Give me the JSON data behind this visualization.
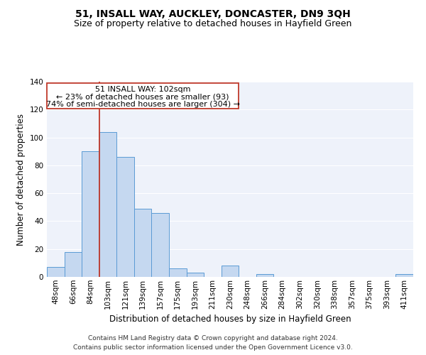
{
  "title": "51, INSALL WAY, AUCKLEY, DONCASTER, DN9 3QH",
  "subtitle": "Size of property relative to detached houses in Hayfield Green",
  "xlabel": "Distribution of detached houses by size in Hayfield Green",
  "ylabel": "Number of detached properties",
  "footnote1": "Contains HM Land Registry data © Crown copyright and database right 2024.",
  "footnote2": "Contains public sector information licensed under the Open Government Licence v3.0.",
  "annotation_line1": "51 INSALL WAY: 102sqm",
  "annotation_line2": "← 23% of detached houses are smaller (93)",
  "annotation_line3": "74% of semi-detached houses are larger (304) →",
  "bar_labels": [
    "48sqm",
    "66sqm",
    "84sqm",
    "103sqm",
    "121sqm",
    "139sqm",
    "157sqm",
    "175sqm",
    "193sqm",
    "211sqm",
    "230sqm",
    "248sqm",
    "266sqm",
    "284sqm",
    "302sqm",
    "320sqm",
    "338sqm",
    "357sqm",
    "375sqm",
    "393sqm",
    "411sqm"
  ],
  "bar_values": [
    7,
    18,
    90,
    104,
    86,
    49,
    46,
    6,
    3,
    0,
    8,
    0,
    2,
    0,
    0,
    0,
    0,
    0,
    0,
    0,
    2
  ],
  "bar_color": "#c5d8f0",
  "bar_edge_color": "#5b9bd5",
  "vline_color": "#c0392b",
  "box_edge_color": "#c0392b",
  "ylim": [
    0,
    140
  ],
  "yticks": [
    0,
    20,
    40,
    60,
    80,
    100,
    120,
    140
  ],
  "bg_color": "#eef2fa",
  "grid_color": "#ffffff",
  "title_fontsize": 10,
  "subtitle_fontsize": 9,
  "label_fontsize": 8.5,
  "tick_fontsize": 7.5,
  "annot_fontsize": 8,
  "footnote_fontsize": 6.5
}
